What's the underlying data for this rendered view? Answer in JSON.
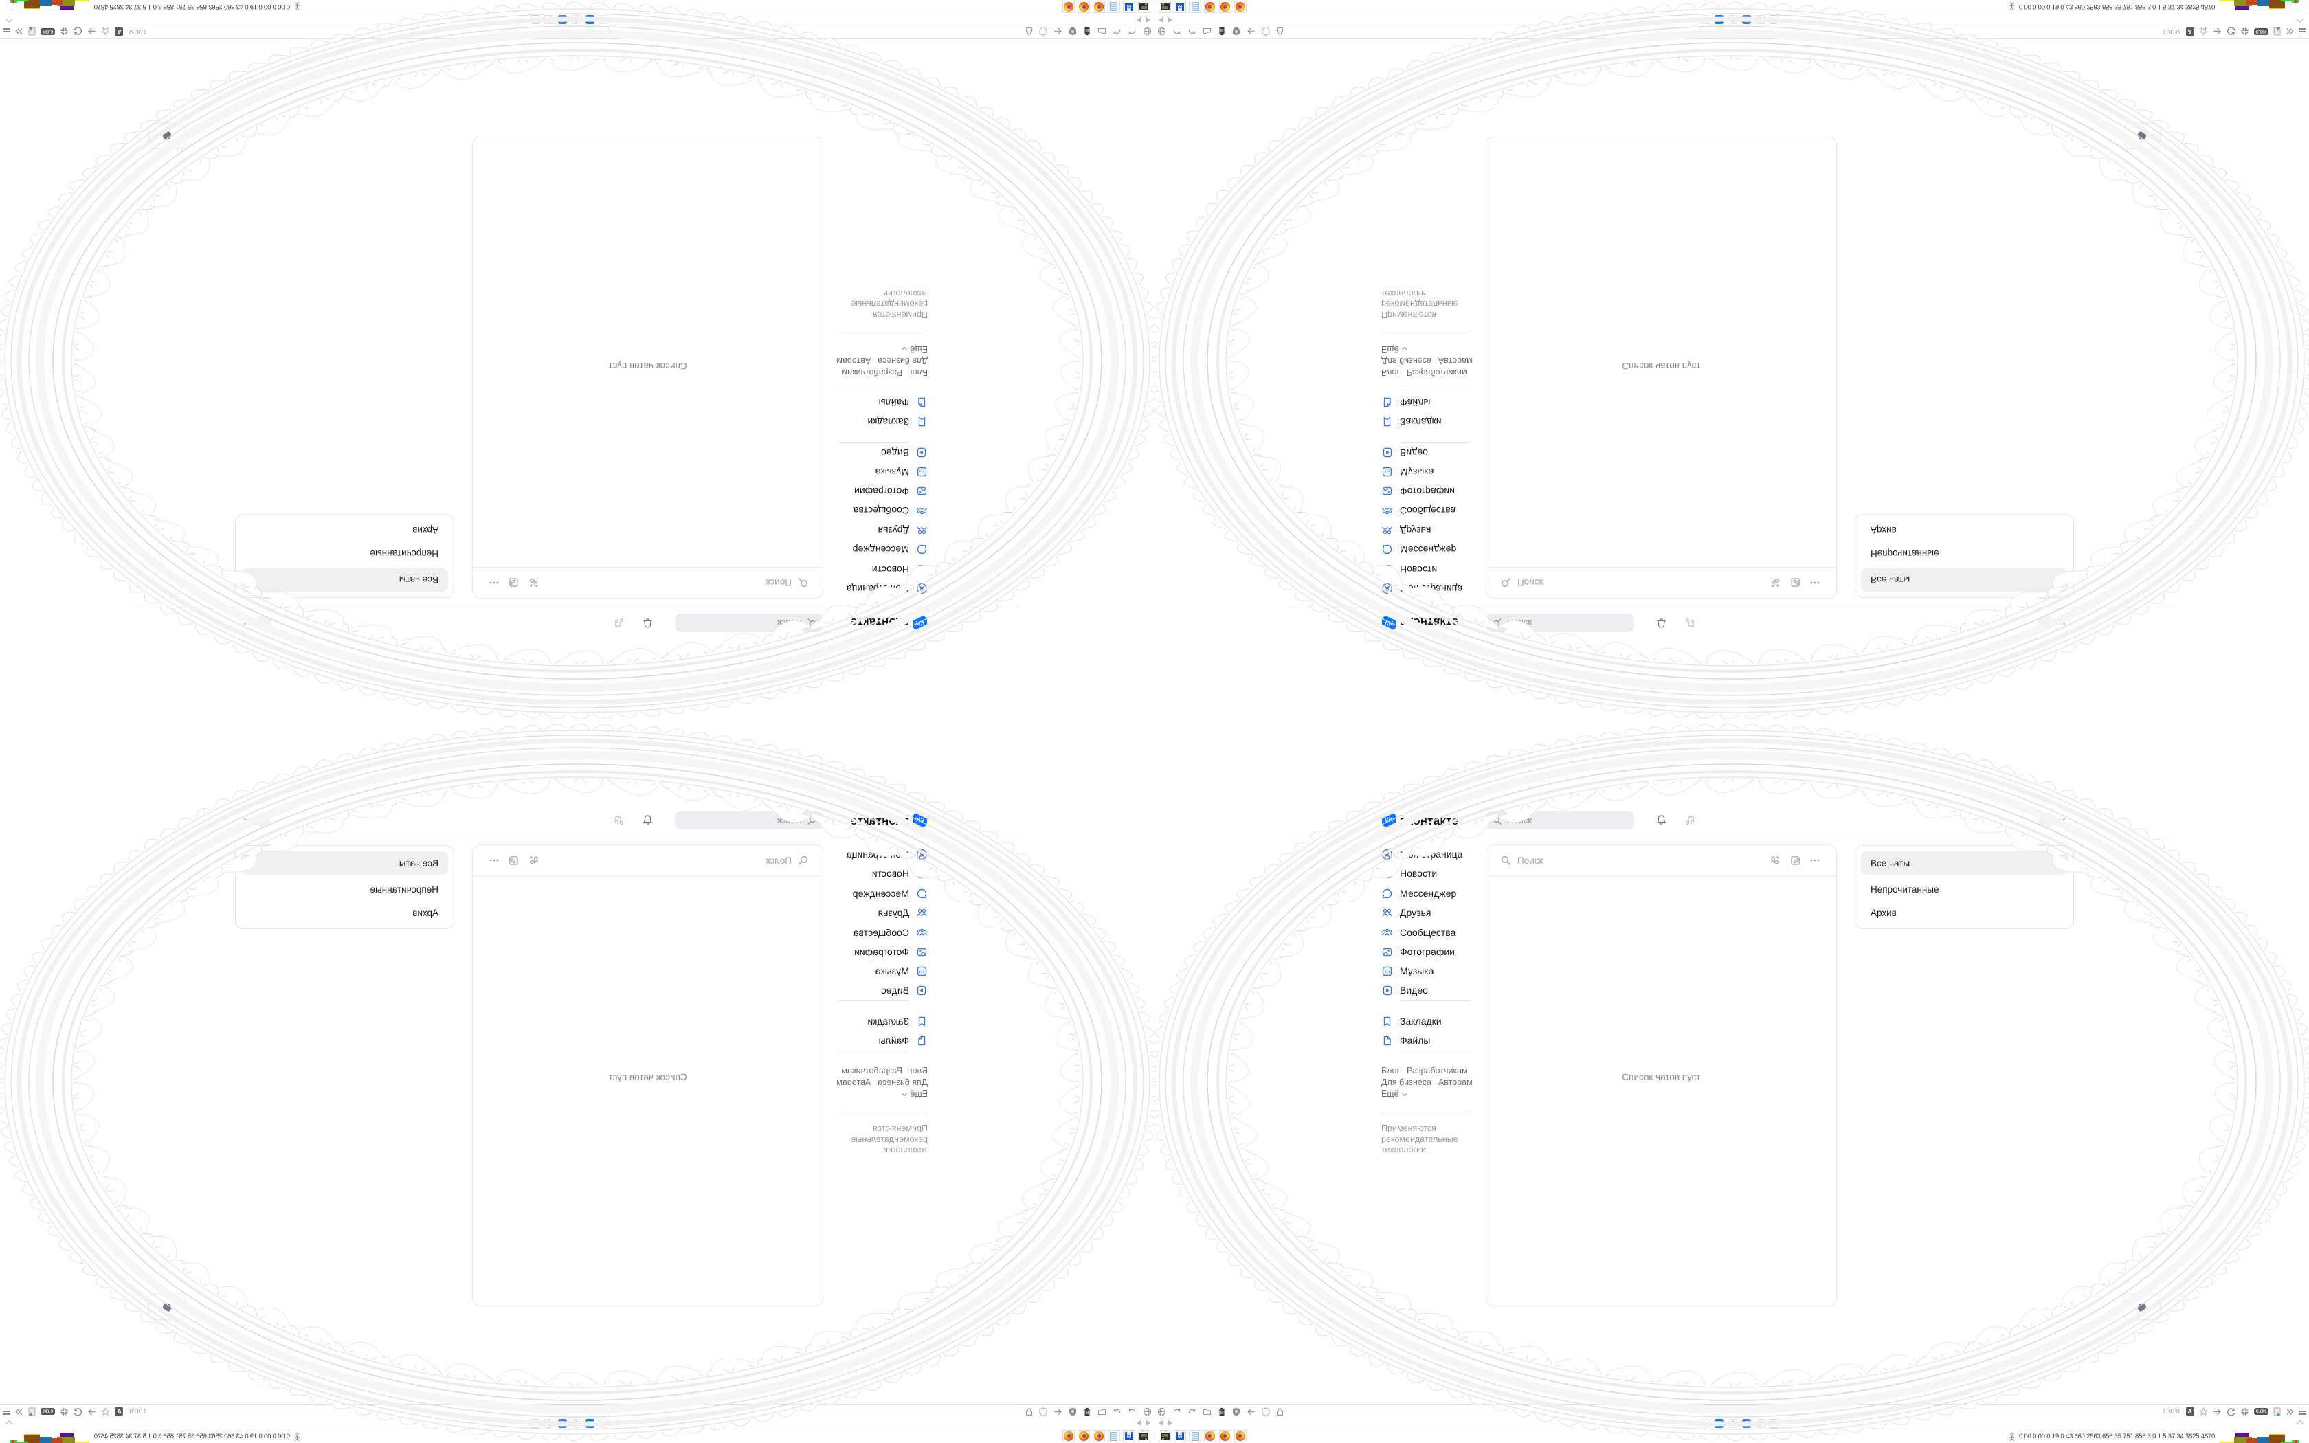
{
  "colors": {
    "vk_blue": "#0077ff",
    "sidebar_icon_blue": "#3b76cf",
    "active_tab_blue": "#4c6ef5",
    "text_dark": "#14191f",
    "text_gray": "#818c99",
    "lace_gray": "#dcdcdc"
  },
  "vk": {
    "header": {
      "logo": "VK",
      "wordmark": "вконтакте",
      "search_placeholder": "Поиск",
      "icons": [
        "bell-icon",
        "music-icon",
        "avatar",
        "chevron-down-icon"
      ]
    },
    "sidebar": {
      "items": [
        {
          "icon": "profile-icon",
          "label": "Моя страница"
        },
        {
          "icon": "news-icon",
          "label": "Новости"
        },
        {
          "icon": "messenger-icon",
          "label": "Мессенджер"
        },
        {
          "icon": "friends-icon",
          "label": "Друзья"
        },
        {
          "icon": "communities-icon",
          "label": "Сообщества"
        },
        {
          "icon": "photos-icon",
          "label": "Фотографии"
        },
        {
          "icon": "music-icon",
          "label": "Музыка"
        },
        {
          "icon": "video-icon",
          "label": "Видео"
        },
        {
          "icon": "bookmarks-icon",
          "label": "Закладки"
        },
        {
          "icon": "files-icon",
          "label": "Файлы"
        }
      ],
      "links": [
        "Блог",
        "Разработчикам",
        "Для бизнеса",
        "Авторам"
      ],
      "more_label": "Ещё",
      "disclaimer": "Применяются рекомендательные технологии"
    },
    "chats": {
      "search_placeholder": "Поиск",
      "empty_text": "Список чатов пуст",
      "action_icons": [
        "add-call-icon",
        "compose-icon",
        "more-icon"
      ]
    },
    "filters": [
      {
        "label": "Все чаты",
        "active": true
      },
      {
        "label": "Непрочитанные",
        "active": false
      },
      {
        "label": "Архив",
        "active": false
      }
    ]
  },
  "browser": {
    "status_url": "https://vk.com/im",
    "zoom_level": "100%",
    "counter_badge": "6.8K",
    "nav_left_icons": [
      "globe-icon",
      "redo-icon",
      "redo-icon",
      "folder-icon",
      "trash-icon",
      "shield-badge-icon",
      "arrow-left-icon",
      "shield-icon",
      "lock-icon"
    ],
    "nav_right_icons": [
      "zoom-level",
      "font-size-icon",
      "star-icon",
      "arrow-right-icon",
      "reload-icon",
      "globe-icon",
      "counter-badge",
      "translate-icon",
      "overflow-icon",
      "menu-icon"
    ],
    "tabs": [
      {
        "icon": "blank"
      },
      {
        "icon": "vk"
      },
      {
        "icon": "chat"
      },
      {
        "icon": "chat-active"
      },
      {
        "icon": "chat"
      },
      {
        "icon": "vk-pale"
      }
    ]
  },
  "taskbar": {
    "launchers": [
      {
        "icon": "screenshot-tool-icon"
      },
      {
        "icon": "floppy-disk-icon",
        "label": "64"
      },
      {
        "icon": "notepad-icon"
      },
      {
        "icon": "firefox-icon"
      },
      {
        "icon": "firefox-icon"
      },
      {
        "icon": "firefox-icon"
      }
    ],
    "monitor_numbers": "0.00 0.00 0.19 0.43  660 2563 656  35  751  856  3.0  1.5  37  34  3825 4870"
  }
}
